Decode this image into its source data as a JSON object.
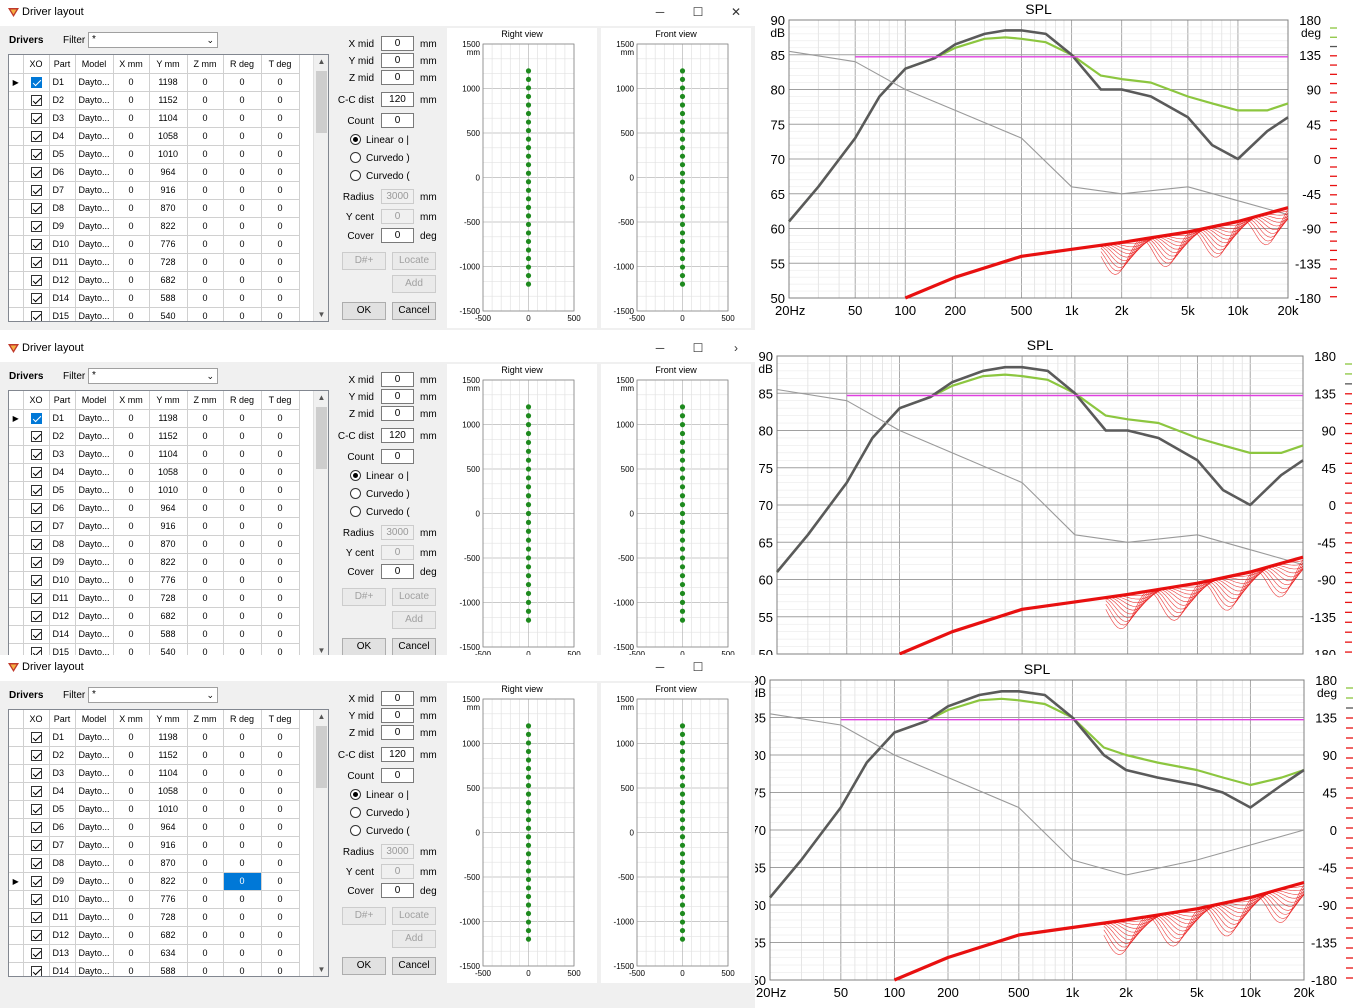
{
  "windows": [
    {
      "title": "Driver layout",
      "drivers_label": "Drivers",
      "filter_label": "Filter",
      "filter_value": "*",
      "columns": [
        "XO",
        "Part",
        "Model",
        "X mm",
        "Y mm",
        "Z mm",
        "R deg",
        "T deg"
      ],
      "rows": [
        [
          "D1",
          "Dayto...",
          "0",
          "1198",
          "0",
          "0",
          "0"
        ],
        [
          "D2",
          "Dayto...",
          "0",
          "1152",
          "0",
          "0",
          "0"
        ],
        [
          "D3",
          "Dayto...",
          "0",
          "1104",
          "0",
          "0",
          "0"
        ],
        [
          "D4",
          "Dayto...",
          "0",
          "1058",
          "0",
          "0",
          "0"
        ],
        [
          "D5",
          "Dayto...",
          "0",
          "1010",
          "0",
          "0",
          "0"
        ],
        [
          "D6",
          "Dayto...",
          "0",
          "964",
          "0",
          "0",
          "0"
        ],
        [
          "D7",
          "Dayto...",
          "0",
          "916",
          "0",
          "0",
          "0"
        ],
        [
          "D8",
          "Dayto...",
          "0",
          "870",
          "0",
          "0",
          "0"
        ],
        [
          "D9",
          "Dayto...",
          "0",
          "822",
          "0",
          "0",
          "0"
        ],
        [
          "D10",
          "Dayto...",
          "0",
          "776",
          "0",
          "0",
          "0"
        ],
        [
          "D11",
          "Dayto...",
          "0",
          "728",
          "0",
          "0",
          "0"
        ],
        [
          "D12",
          "Dayto...",
          "0",
          "682",
          "0",
          "0",
          "0"
        ],
        [
          "D14",
          "Dayto...",
          "0",
          "588",
          "0",
          "0",
          "0"
        ],
        [
          "D15",
          "Dayto...",
          "0",
          "540",
          "0",
          "0",
          "0"
        ]
      ],
      "current_row": 0,
      "selected_cell": null,
      "fields": {
        "x_mid": "0",
        "y_mid": "0",
        "z_mid": "0",
        "cc_dist": "120",
        "count": "0",
        "radius": "3000",
        "y_cent": "0",
        "cover": "0"
      },
      "dot_count": 26,
      "max_icon": "☐",
      "close_icon": "✕"
    },
    {
      "title": "Driver layout",
      "drivers_label": "Drivers",
      "filter_label": "Filter",
      "filter_value": "*",
      "columns": [
        "XO",
        "Part",
        "Model",
        "X mm",
        "Y mm",
        "Z mm",
        "R deg",
        "T deg"
      ],
      "rows": [
        [
          "D1",
          "Dayto...",
          "0",
          "1198",
          "0",
          "0",
          "0"
        ],
        [
          "D2",
          "Dayto...",
          "0",
          "1152",
          "0",
          "0",
          "0"
        ],
        [
          "D3",
          "Dayto...",
          "0",
          "1104",
          "0",
          "0",
          "0"
        ],
        [
          "D4",
          "Dayto...",
          "0",
          "1058",
          "0",
          "0",
          "0"
        ],
        [
          "D5",
          "Dayto...",
          "0",
          "1010",
          "0",
          "0",
          "0"
        ],
        [
          "D6",
          "Dayto...",
          "0",
          "964",
          "0",
          "0",
          "0"
        ],
        [
          "D7",
          "Dayto...",
          "0",
          "916",
          "0",
          "0",
          "0"
        ],
        [
          "D8",
          "Dayto...",
          "0",
          "870",
          "0",
          "0",
          "0"
        ],
        [
          "D9",
          "Dayto...",
          "0",
          "822",
          "0",
          "0",
          "0"
        ],
        [
          "D10",
          "Dayto...",
          "0",
          "776",
          "0",
          "0",
          "0"
        ],
        [
          "D11",
          "Dayto...",
          "0",
          "728",
          "0",
          "0",
          "0"
        ],
        [
          "D12",
          "Dayto...",
          "0",
          "682",
          "0",
          "0",
          "0"
        ],
        [
          "D14",
          "Dayto...",
          "0",
          "588",
          "0",
          "0",
          "0"
        ],
        [
          "D15",
          "Dayto...",
          "0",
          "540",
          "0",
          "0",
          "0"
        ]
      ],
      "current_row": 0,
      "selected_cell": null,
      "fields": {
        "x_mid": "0",
        "y_mid": "0",
        "z_mid": "0",
        "cc_dist": "120",
        "count": "0",
        "radius": "3000",
        "y_cent": "0",
        "cover": "0"
      },
      "dot_count": 25,
      "max_icon": "☐",
      "close_icon": "›"
    },
    {
      "title": "Driver layout",
      "drivers_label": "Drivers",
      "filter_label": "Filter",
      "filter_value": "*",
      "columns": [
        "XO",
        "Part",
        "Model",
        "X mm",
        "Y mm",
        "Z mm",
        "R deg",
        "T deg"
      ],
      "rows": [
        [
          "D1",
          "Dayto...",
          "0",
          "1198",
          "0",
          "0",
          "0"
        ],
        [
          "D2",
          "Dayto...",
          "0",
          "1152",
          "0",
          "0",
          "0"
        ],
        [
          "D3",
          "Dayto...",
          "0",
          "1104",
          "0",
          "0",
          "0"
        ],
        [
          "D4",
          "Dayto...",
          "0",
          "1058",
          "0",
          "0",
          "0"
        ],
        [
          "D5",
          "Dayto...",
          "0",
          "1010",
          "0",
          "0",
          "0"
        ],
        [
          "D6",
          "Dayto...",
          "0",
          "964",
          "0",
          "0",
          "0"
        ],
        [
          "D7",
          "Dayto...",
          "0",
          "916",
          "0",
          "0",
          "0"
        ],
        [
          "D8",
          "Dayto...",
          "0",
          "870",
          "0",
          "0",
          "0"
        ],
        [
          "D9",
          "Dayto...",
          "0",
          "822",
          "0",
          "0",
          "0"
        ],
        [
          "D10",
          "Dayto...",
          "0",
          "776",
          "0",
          "0",
          "0"
        ],
        [
          "D11",
          "Dayto...",
          "0",
          "728",
          "0",
          "0",
          "0"
        ],
        [
          "D12",
          "Dayto...",
          "0",
          "682",
          "0",
          "0",
          "0"
        ],
        [
          "D13",
          "Dayto...",
          "0",
          "634",
          "0",
          "0",
          "0"
        ],
        [
          "D14",
          "Dayto...",
          "0",
          "588",
          "0",
          "0",
          "0"
        ]
      ],
      "current_row": 8,
      "selected_cell": [
        8,
        5
      ],
      "fields": {
        "x_mid": "0",
        "y_mid": "0",
        "z_mid": "0",
        "cc_dist": "120",
        "count": "0",
        "radius": "3000",
        "y_cent": "0",
        "cover": "0"
      },
      "dot_count": 26,
      "max_icon": "☐",
      "close_icon": ""
    }
  ],
  "form_labels": {
    "x_mid": "X mid",
    "y_mid": "Y mid",
    "z_mid": "Z mid",
    "cc_dist": "C-C dist",
    "count": "Count",
    "radius": "Radius",
    "y_cent": "Y cent",
    "cover": "Cover",
    "mm": "mm",
    "deg": "deg",
    "linear": "Linear",
    "linear_glyph": "o |",
    "curved1": "Curved",
    "curved1_glyph": "o )",
    "curved2": "Curved",
    "curved2_glyph": "o (",
    "dnum": "D#+",
    "locate": "Locate",
    "add": "Add",
    "ok": "OK",
    "cancel": "Cancel"
  },
  "views": {
    "right_title": "Right view",
    "front_title": "Front view",
    "unit": "mm",
    "y_ticks": [
      "1500",
      "1000",
      "500",
      "0",
      "-500",
      "-1000",
      "-1500"
    ],
    "x_ticks": [
      "-500",
      "0",
      "500"
    ],
    "dot_color": "#1e8a1e"
  },
  "plots_common": {
    "title": "SPL",
    "y_unit": "dB",
    "y2_unit": "deg",
    "y_ticks": [
      "90",
      "85",
      "80",
      "75",
      "70",
      "65",
      "60",
      "55",
      "50"
    ],
    "y2_ticks": [
      "180",
      "135",
      "90",
      "45",
      "0",
      "-45",
      "-90",
      "-135",
      "-180"
    ],
    "x_ticks": [
      "20Hz",
      "50",
      "100",
      "200",
      "500",
      "1k",
      "2k",
      "5k",
      "10k",
      "20k"
    ],
    "colors": {
      "main": "#5a5a5a",
      "green": "#8cc63f",
      "phase": "#9a9a9a",
      "target": "#e040e0",
      "red": "#e81010"
    }
  },
  "chart_data": [
    {
      "type": "line",
      "title": "SPL",
      "ylabel": "dB",
      "y2label": "deg",
      "x_scale": "log",
      "xlim": [
        20,
        20000
      ],
      "ylim": [
        50,
        90
      ],
      "y2lim": [
        -180,
        180
      ],
      "series": [
        {
          "x": [
            20,
            30,
            50,
            70,
            100,
            150,
            200,
            300,
            400,
            500,
            700,
            1000,
            1500,
            2000,
            3000,
            5000,
            7000,
            10000,
            15000,
            20000
          ],
          "values": [
            61,
            66,
            73,
            79,
            83,
            84.5,
            86.5,
            88,
            88.5,
            88.5,
            88,
            85,
            80,
            80,
            79,
            76,
            72,
            70,
            74,
            76
          ]
        },
        {
          "x": [
            20,
            30,
            50,
            70,
            100,
            150,
            200,
            300,
            400,
            500,
            700,
            1000,
            1500,
            2000,
            3000,
            5000,
            7000,
            10000,
            15000,
            20000
          ],
          "values": [
            61,
            66,
            73,
            79,
            83,
            84.5,
            86,
            87.3,
            87.5,
            87.3,
            86.8,
            85,
            82,
            81.5,
            81,
            79,
            78,
            77,
            77,
            78
          ]
        },
        {
          "x": [
            20,
            50,
            100,
            200,
            500,
            1000,
            2000,
            5000,
            10000,
            20000
          ],
          "values": [
            85.5,
            84,
            80,
            77,
            73,
            66,
            65,
            66,
            64,
            62
          ]
        },
        {
          "x": [
            50,
            20000
          ],
          "values": [
            84.7,
            84.7
          ]
        },
        {
          "x": [
            100,
            200,
            500,
            1000,
            2000,
            5000,
            10000,
            20000
          ],
          "values": [
            50,
            53,
            56,
            57,
            58,
            59.5,
            61,
            63
          ]
        }
      ]
    },
    {
      "type": "line",
      "title": "SPL",
      "ylabel": "dB",
      "x_scale": "log",
      "xlim": [
        20,
        20000
      ],
      "ylim": [
        50,
        90
      ],
      "y2lim": [
        -180,
        180
      ],
      "series": [
        {
          "x": [
            20,
            30,
            50,
            70,
            100,
            150,
            200,
            300,
            400,
            500,
            700,
            1000,
            1500,
            2000,
            3000,
            5000,
            7000,
            10000,
            15000,
            20000
          ],
          "values": [
            61,
            66,
            73,
            79,
            83,
            84.5,
            86.5,
            88,
            88.5,
            88.5,
            88,
            85,
            80,
            80,
            79,
            76,
            72,
            70,
            74,
            76
          ]
        },
        {
          "x": [
            20,
            30,
            50,
            70,
            100,
            150,
            200,
            300,
            400,
            500,
            700,
            1000,
            1500,
            2000,
            3000,
            5000,
            7000,
            10000,
            15000,
            20000
          ],
          "values": [
            61,
            66,
            73,
            79,
            83,
            84.5,
            86,
            87.3,
            87.5,
            87.3,
            86.8,
            85,
            82,
            81.5,
            81,
            79,
            78,
            77,
            77,
            78
          ]
        },
        {
          "x": [
            20,
            50,
            100,
            200,
            500,
            1000,
            2000,
            5000,
            10000,
            20000
          ],
          "values": [
            85.5,
            84,
            80,
            77,
            73,
            66,
            65,
            66,
            64,
            62
          ]
        },
        {
          "x": [
            50,
            20000
          ],
          "values": [
            84.7,
            84.7
          ]
        },
        {
          "x": [
            100,
            200,
            500,
            1000,
            2000,
            5000,
            10000,
            20000
          ],
          "values": [
            50,
            53,
            56,
            57,
            58,
            59.5,
            61,
            63
          ]
        }
      ]
    },
    {
      "type": "line",
      "title": "SPL",
      "ylabel": "dB",
      "y2label": "deg",
      "x_scale": "log",
      "xlim": [
        20,
        20000
      ],
      "ylim": [
        50,
        90
      ],
      "y2lim": [
        -180,
        180
      ],
      "series": [
        {
          "x": [
            20,
            30,
            50,
            70,
            100,
            150,
            200,
            300,
            400,
            500,
            700,
            1000,
            1500,
            2000,
            3000,
            5000,
            7000,
            10000,
            15000,
            20000
          ],
          "values": [
            61,
            66,
            73,
            79,
            83,
            84.5,
            86.5,
            88,
            88.5,
            88.5,
            88,
            85,
            80,
            78,
            77,
            76,
            75,
            73,
            76,
            78
          ]
        },
        {
          "x": [
            20,
            30,
            50,
            70,
            100,
            150,
            200,
            300,
            400,
            500,
            700,
            1000,
            1500,
            2000,
            3000,
            5000,
            7000,
            10000,
            15000,
            20000
          ],
          "values": [
            61,
            66,
            73,
            79,
            83,
            84.5,
            86,
            87.3,
            87.5,
            87.3,
            86.8,
            85,
            81,
            80,
            79,
            78,
            77,
            76,
            77,
            78
          ]
        },
        {
          "x": [
            20,
            50,
            100,
            200,
            500,
            1000,
            2000,
            5000,
            10000,
            20000
          ],
          "values": [
            85.5,
            84,
            80,
            77,
            73,
            66,
            64,
            66,
            68,
            70
          ]
        },
        {
          "x": [
            50,
            20000
          ],
          "values": [
            84.7,
            84.7
          ]
        },
        {
          "x": [
            100,
            200,
            500,
            1000,
            2000,
            5000,
            10000,
            20000
          ],
          "values": [
            50,
            53,
            56,
            57,
            58,
            59.5,
            61,
            63
          ]
        }
      ]
    }
  ]
}
